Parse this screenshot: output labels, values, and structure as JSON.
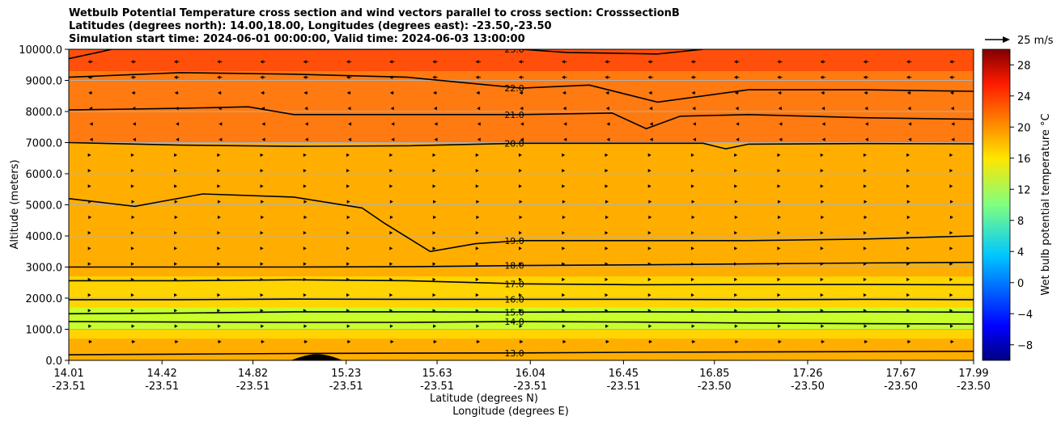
{
  "titles": {
    "line1": "Wetbulb Potential Temperature cross section and wind vectors parallel to cross section: CrosssectionB",
    "line2": "Latitudes (degrees north): 14.00,18.00, Longitudes (degrees east): -23.50,-23.50",
    "line3": "Simulation start time: 2024-06-01 00:00:00, Valid time: 2024-06-03 13:00:00"
  },
  "quiver_key": {
    "label": "25 m/s"
  },
  "colors": {
    "background_field": "#ffae00",
    "upper_field": "#ff7a10",
    "top_field": "#ff4f0a",
    "low_level_band": "#ffd400",
    "moist_band": "#c8ff2a",
    "terrain": "#000000"
  },
  "chart_data": {
    "type": "contour",
    "title": "Wetbulb Potential Temperature cross section and wind vectors parallel to cross section: CrosssectionB",
    "xlabel": "Latitude (degrees N)",
    "xlabel2": "Longitude (degrees E)",
    "ylabel": "Altitude (meters)",
    "ylim": [
      0,
      10000
    ],
    "xlim": [
      14.01,
      17.99
    ],
    "y_ticks": [
      "0.0",
      "1000.0",
      "2000.0",
      "3000.0",
      "4000.0",
      "5000.0",
      "6000.0",
      "7000.0",
      "8000.0",
      "9000.0",
      "10000.0"
    ],
    "x_ticks": [
      {
        "lat": "14.01",
        "lon": "-23.51"
      },
      {
        "lat": "14.42",
        "lon": "-23.51"
      },
      {
        "lat": "14.82",
        "lon": "-23.51"
      },
      {
        "lat": "15.23",
        "lon": "-23.51"
      },
      {
        "lat": "15.63",
        "lon": "-23.51"
      },
      {
        "lat": "16.04",
        "lon": "-23.51"
      },
      {
        "lat": "16.45",
        "lon": "-23.51"
      },
      {
        "lat": "16.85",
        "lon": "-23.50"
      },
      {
        "lat": "17.26",
        "lon": "-23.50"
      },
      {
        "lat": "17.67",
        "lon": "-23.50"
      },
      {
        "lat": "17.99",
        "lon": "-23.50"
      }
    ],
    "grid": true,
    "colorbar": {
      "label": "Wet bulb potential temperature $^\\circ$C",
      "ticks": [
        "−8",
        "−4",
        "0",
        "4",
        "8",
        "12",
        "16",
        "20",
        "24",
        "28"
      ],
      "range": [
        -10,
        30
      ],
      "colormap": "jet"
    },
    "contours": [
      {
        "value": 13.0,
        "label": "13.0",
        "points": [
          [
            14.01,
            180
          ],
          [
            14.5,
            200
          ],
          [
            15.0,
            220
          ],
          [
            15.5,
            230
          ],
          [
            16.0,
            240
          ],
          [
            16.5,
            260
          ],
          [
            17.0,
            270
          ],
          [
            17.5,
            280
          ],
          [
            17.99,
            290
          ]
        ]
      },
      {
        "value": 14.0,
        "label": "14.0",
        "points": [
          [
            14.01,
            1250
          ],
          [
            14.5,
            1230
          ],
          [
            15.0,
            1220
          ],
          [
            15.5,
            1220
          ],
          [
            16.0,
            1250
          ],
          [
            16.5,
            1230
          ],
          [
            17.0,
            1200
          ],
          [
            17.5,
            1180
          ],
          [
            17.99,
            1170
          ]
        ]
      },
      {
        "value": 15.0,
        "label": "15.0",
        "points": [
          [
            14.01,
            1500
          ],
          [
            14.5,
            1520
          ],
          [
            15.0,
            1560
          ],
          [
            15.5,
            1560
          ],
          [
            16.0,
            1550
          ],
          [
            16.5,
            1560
          ],
          [
            17.0,
            1550
          ],
          [
            17.5,
            1560
          ],
          [
            17.99,
            1550
          ]
        ]
      },
      {
        "value": 16.0,
        "label": "16.0",
        "points": [
          [
            14.01,
            1950
          ],
          [
            14.5,
            1950
          ],
          [
            15.0,
            1970
          ],
          [
            15.5,
            1960
          ],
          [
            16.0,
            1960
          ],
          [
            16.5,
            1960
          ],
          [
            17.0,
            1950
          ],
          [
            17.5,
            1960
          ],
          [
            17.99,
            1950
          ]
        ]
      },
      {
        "value": 17.0,
        "label": "17.0",
        "points": [
          [
            14.01,
            2560
          ],
          [
            14.5,
            2560
          ],
          [
            15.0,
            2590
          ],
          [
            15.5,
            2560
          ],
          [
            16.0,
            2460
          ],
          [
            16.5,
            2430
          ],
          [
            17.0,
            2440
          ],
          [
            17.5,
            2440
          ],
          [
            17.99,
            2430
          ]
        ]
      },
      {
        "value": 18.0,
        "label": "18.0",
        "points": [
          [
            14.01,
            3000
          ],
          [
            14.5,
            3000
          ],
          [
            15.0,
            3000
          ],
          [
            15.5,
            3010
          ],
          [
            16.0,
            3050
          ],
          [
            16.5,
            3070
          ],
          [
            17.0,
            3100
          ],
          [
            17.5,
            3130
          ],
          [
            17.99,
            3150
          ]
        ]
      },
      {
        "value": 19.0,
        "label": "19.0",
        "points": [
          [
            14.01,
            5200
          ],
          [
            14.3,
            4950
          ],
          [
            14.6,
            5350
          ],
          [
            15.0,
            5250
          ],
          [
            15.3,
            4900
          ],
          [
            15.4,
            4400
          ],
          [
            15.6,
            3500
          ],
          [
            15.8,
            3750
          ],
          [
            16.0,
            3850
          ],
          [
            16.5,
            3850
          ],
          [
            17.0,
            3850
          ],
          [
            17.5,
            3900
          ],
          [
            17.99,
            4000
          ]
        ]
      },
      {
        "value": 20.0,
        "label": "20.0",
        "points": [
          [
            14.01,
            7000
          ],
          [
            14.5,
            6920
          ],
          [
            15.0,
            6880
          ],
          [
            15.5,
            6900
          ],
          [
            16.0,
            6980
          ],
          [
            16.5,
            6980
          ],
          [
            16.8,
            6980
          ],
          [
            16.9,
            6800
          ],
          [
            17.0,
            6950
          ],
          [
            17.5,
            6970
          ],
          [
            17.99,
            6960
          ]
        ]
      },
      {
        "value": 21.0,
        "label": "21.0",
        "points": [
          [
            14.01,
            8050
          ],
          [
            14.5,
            8100
          ],
          [
            14.8,
            8150
          ],
          [
            15.0,
            7900
          ],
          [
            15.5,
            7900
          ],
          [
            16.0,
            7900
          ],
          [
            16.4,
            7950
          ],
          [
            16.55,
            7450
          ],
          [
            16.7,
            7850
          ],
          [
            17.0,
            7900
          ],
          [
            17.5,
            7800
          ],
          [
            17.99,
            7750
          ]
        ]
      },
      {
        "value": 22.0,
        "label": "22.0",
        "points": [
          [
            14.01,
            9100
          ],
          [
            14.5,
            9250
          ],
          [
            15.0,
            9200
          ],
          [
            15.5,
            9100
          ],
          [
            16.0,
            8750
          ],
          [
            16.3,
            8850
          ],
          [
            16.6,
            8300
          ],
          [
            17.0,
            8700
          ],
          [
            17.5,
            8700
          ],
          [
            17.99,
            8650
          ]
        ]
      },
      {
        "value": 23.0,
        "label": "23.0",
        "points": [
          [
            14.01,
            9700
          ],
          [
            14.2,
            10000
          ],
          [
            16.0,
            10000
          ],
          [
            16.2,
            9900
          ],
          [
            16.6,
            9850
          ],
          [
            16.8,
            10000
          ]
        ]
      }
    ],
    "wind_vectors": {
      "levels_m": [
        9600,
        9100,
        8600,
        8100,
        7600,
        7100,
        6600,
        6100,
        5600,
        5100,
        4600,
        4100,
        3600,
        3100,
        2600,
        2100,
        1600,
        1100,
        600
      ],
      "u_ms": [
        -4,
        -4,
        -3,
        -2,
        -1,
        -1,
        1,
        1,
        1,
        2,
        2,
        1,
        1,
        1,
        1,
        1,
        1,
        2,
        3
      ]
    },
    "terrain_peak": {
      "x": 15.1,
      "height_m": 200
    }
  }
}
